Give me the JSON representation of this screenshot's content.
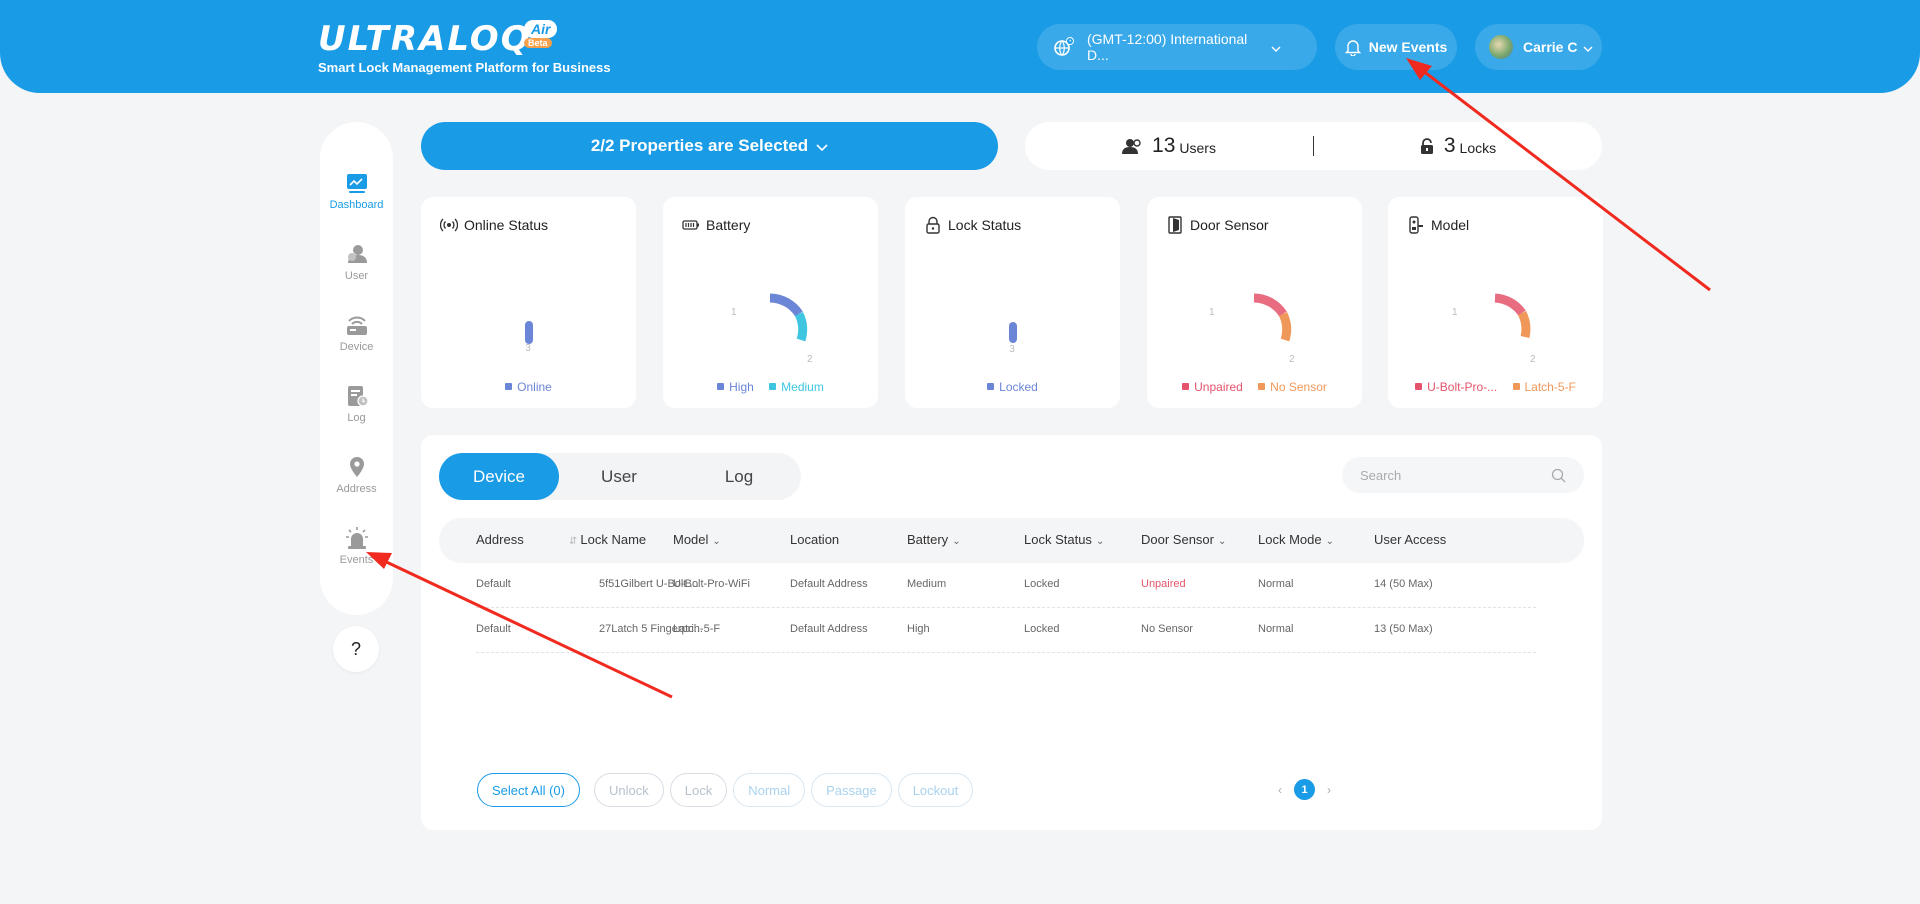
{
  "header": {
    "logo": "ULTRALOQ",
    "air_badge": "Air",
    "beta_badge": "Beta",
    "tagline": "Smart Lock Management Platform for Business",
    "timezone": "(GMT-12:00) International D...",
    "new_events": "New Events",
    "user_name": "Carrie C"
  },
  "sidebar": {
    "items": [
      {
        "label": "Dashboard",
        "icon": "dashboard-icon",
        "active": true
      },
      {
        "label": "User",
        "icon": "user-icon"
      },
      {
        "label": "Device",
        "icon": "device-icon"
      },
      {
        "label": "Log",
        "icon": "log-icon"
      },
      {
        "label": "Address",
        "icon": "location-pin-icon"
      },
      {
        "label": "Events",
        "icon": "alarm-icon"
      }
    ],
    "help": "?"
  },
  "properties": {
    "selector_label": "2/2 Properties are Selected",
    "users_count": "13",
    "users_label": "Users",
    "locks_count": "3",
    "locks_label": "Locks"
  },
  "cards": [
    {
      "title": "Online Status",
      "icon": "signal-icon",
      "top_label": "3",
      "legend": [
        {
          "label": "Online",
          "color": "#6b86d6"
        }
      ]
    },
    {
      "title": "Battery",
      "icon": "battery-icon",
      "left_label": "1",
      "bottom_label": "2",
      "legend": [
        {
          "label": "High",
          "color": "#6b86d6"
        },
        {
          "label": "Medium",
          "color": "#3ec6e0"
        }
      ]
    },
    {
      "title": "Lock Status",
      "icon": "padlock-icon",
      "top_label": "3",
      "legend": [
        {
          "label": "Locked",
          "color": "#6b86d6"
        }
      ]
    },
    {
      "title": "Door Sensor",
      "icon": "door-icon",
      "left_label": "1",
      "bottom_label": "2",
      "legend": [
        {
          "label": "Unpaired",
          "color": "#e5546b"
        },
        {
          "label": "No Sensor",
          "color": "#f0985a"
        }
      ]
    },
    {
      "title": "Model",
      "icon": "smart-lock-icon",
      "left_label": "1",
      "bottom_label": "2",
      "legend": [
        {
          "label": "U-Bolt-Pro-...",
          "color": "#e5546b"
        },
        {
          "label": "Latch-5-F",
          "color": "#f0985a"
        }
      ]
    }
  ],
  "colors": {
    "primary": "#1a9be6",
    "blue_series": "#6b86d6",
    "cyan_series": "#3ec6e0",
    "red_series": "#e5546b",
    "orange_series": "#f0985a",
    "annotation_arrow": "#f02a1e"
  },
  "tabs": [
    "Device",
    "User",
    "Log"
  ],
  "search_placeholder": "Search",
  "table": {
    "columns": [
      "Address",
      "Lock Name",
      "Model",
      "Location",
      "Battery",
      "Lock Status",
      "Door Sensor",
      "Lock Mode",
      "User Access"
    ],
    "rows": [
      [
        "Default",
        "5f51Gilbert U-Bolt ...",
        "U-Bolt-Pro-WiFi",
        "Default Address",
        "Medium",
        "Locked",
        "Unpaired",
        "Normal",
        "14 (50 Max)"
      ],
      [
        "Default",
        "27Latch 5 Fingerpri...",
        "Latch-5-F",
        "Default Address",
        "High",
        "Locked",
        "No Sensor",
        "Normal",
        "13 (50 Max)"
      ]
    ]
  },
  "actions": {
    "select_all": "Select All (0)",
    "unlock": "Unlock",
    "lock": "Lock",
    "normal": "Normal",
    "passage": "Passage",
    "lockout": "Lockout"
  },
  "pagination": {
    "prev": "‹",
    "current": "1",
    "next": "›"
  }
}
